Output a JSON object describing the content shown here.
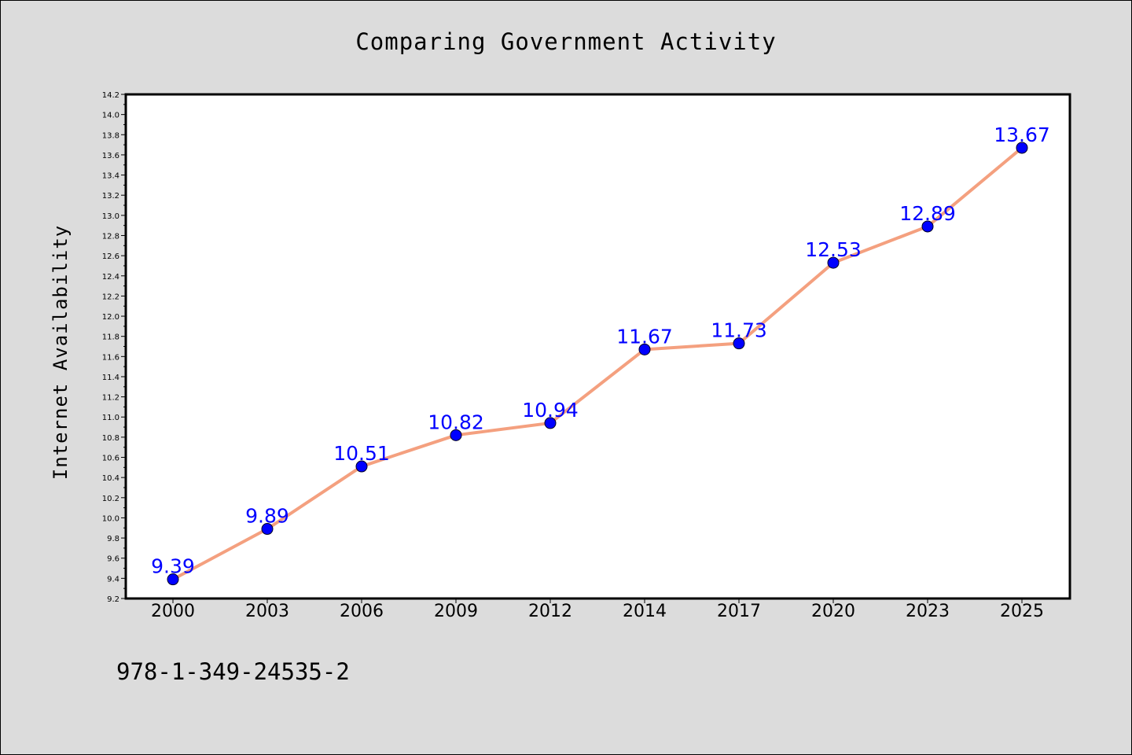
{
  "chart_data": {
    "type": "line",
    "title": "Comparing Government Activity",
    "xlabel": "",
    "ylabel": "Internet Availability",
    "categories": [
      "2000",
      "2003",
      "2006",
      "2009",
      "2012",
      "2014",
      "2017",
      "2020",
      "2023",
      "2025"
    ],
    "series": [
      {
        "values": [
          9.39,
          9.89,
          10.51,
          10.82,
          10.94,
          11.67,
          11.73,
          12.53,
          12.89,
          13.67
        ]
      }
    ],
    "data_labels": [
      "9.39",
      "9.89",
      "10.51",
      "10.82",
      "10.94",
      "11.67",
      "11.73",
      "12.53",
      "12.89",
      "13.67"
    ],
    "ylim": [
      9.2,
      14.2
    ],
    "yticks": [
      "9.2",
      "9.4",
      "9.6",
      "9.8",
      "10.0",
      "10.2",
      "10.4",
      "10.6",
      "10.8",
      "11.0",
      "11.2",
      "11.4",
      "11.6",
      "11.8",
      "12.0",
      "12.2",
      "12.4",
      "12.6",
      "12.8",
      "13.0",
      "13.2",
      "13.4",
      "13.6",
      "13.8",
      "14.0",
      "14.2"
    ],
    "grid": false,
    "legend": "none",
    "colors": {
      "line": "#f4a07f",
      "marker": "#0000ff",
      "label": "#0000ff",
      "background": "#dcdcdc",
      "plot_background": "#ffffff"
    }
  },
  "footer": {
    "code": "978-1-349-24535-2"
  }
}
